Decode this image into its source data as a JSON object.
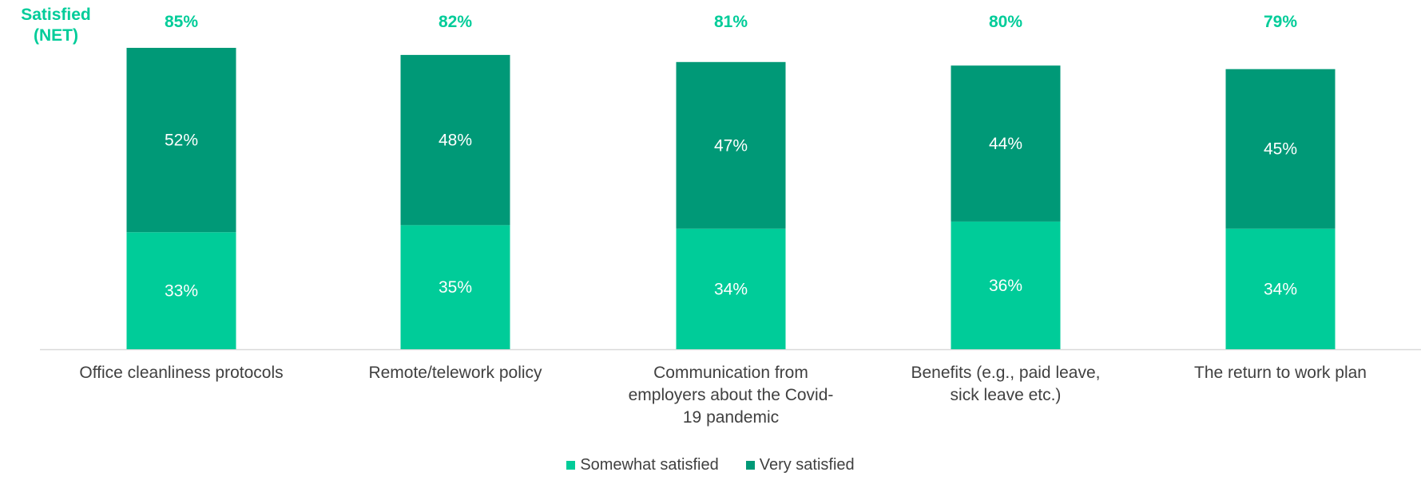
{
  "net_label_line1": "Satisfied",
  "net_label_line2": "(NET)",
  "colors": {
    "somewhat": "#00cc99",
    "very": "#009977",
    "net_text": "#00cc99",
    "label_text": "#404040",
    "axis": "#d9d9d9"
  },
  "chart_data": {
    "type": "bar",
    "stacked": true,
    "categories": [
      "Office cleanliness protocols",
      "Remote/telework policy",
      "Communication from employers about the Covid-19 pandemic",
      "Benefits (e.g., paid leave, sick leave etc.)",
      "The return to work plan"
    ],
    "category_lines": [
      [
        "Office cleanliness protocols"
      ],
      [
        "Remote/telework policy"
      ],
      [
        "Communication from",
        "employers about the Covid-",
        "19 pandemic"
      ],
      [
        "Benefits (e.g., paid leave,",
        "sick leave etc.)"
      ],
      [
        "The return to work plan"
      ]
    ],
    "series": [
      {
        "name": "Somewhat satisfied",
        "values": [
          33,
          35,
          34,
          36,
          34
        ],
        "labels": [
          "33%",
          "35%",
          "34%",
          "36%",
          "34%"
        ]
      },
      {
        "name": "Very satisfied",
        "values": [
          52,
          48,
          47,
          44,
          45
        ],
        "labels": [
          "52%",
          "48%",
          "47%",
          "44%",
          "45%"
        ]
      }
    ],
    "net_values": [
      85,
      82,
      81,
      80,
      79
    ],
    "net_labels": [
      "85%",
      "82%",
      "81%",
      "80%",
      "79%"
    ],
    "ylim": [
      0,
      85
    ],
    "grid": false,
    "legend": "bottom"
  }
}
